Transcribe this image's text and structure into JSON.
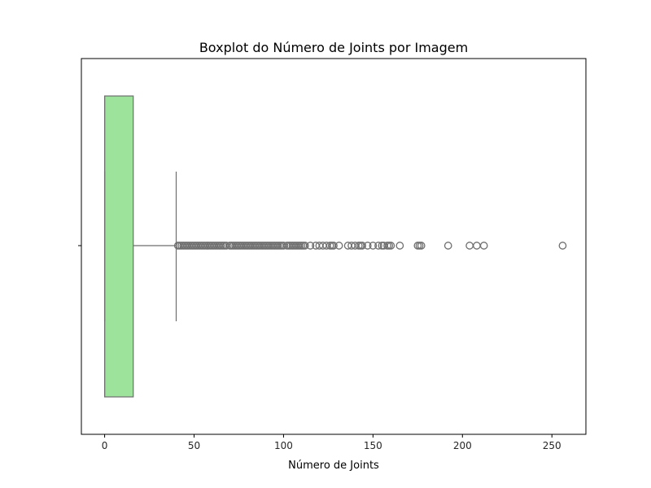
{
  "chart_data": {
    "type": "boxplot",
    "orientation": "horizontal",
    "title": "Boxplot do Número de Joints por Imagem",
    "xlabel": "Número de Joints",
    "ylabel": "",
    "xlim": [
      -13,
      269
    ],
    "xticks": [
      0,
      50,
      100,
      150,
      200,
      250
    ],
    "grid": false,
    "legend": "none",
    "box": {
      "min": 0,
      "q1": 0,
      "median": 0,
      "q3": 16,
      "whisker_low": 0,
      "whisker_high": 40
    },
    "outliers": [
      41,
      42,
      43,
      44,
      45,
      46,
      47,
      48,
      49,
      50,
      51,
      52,
      53,
      54,
      55,
      56,
      57,
      58,
      59,
      60,
      61,
      62,
      63,
      64,
      65,
      66,
      67,
      68,
      70,
      71,
      72,
      73,
      74,
      75,
      76,
      77,
      78,
      79,
      80,
      81,
      82,
      83,
      84,
      85,
      86,
      87,
      88,
      89,
      90,
      91,
      92,
      93,
      94,
      95,
      96,
      97,
      98,
      99,
      100,
      102,
      103,
      104,
      105,
      106,
      107,
      108,
      109,
      110,
      111,
      112,
      115,
      118,
      120,
      122,
      124,
      126,
      127,
      128,
      131,
      136,
      138,
      140,
      142,
      143,
      144,
      147,
      150,
      153,
      155,
      156,
      158,
      159,
      160,
      165,
      175,
      176,
      177,
      192,
      204,
      208,
      212,
      256
    ],
    "colors": {
      "box_fill": "#9de39b",
      "line": "#6e6e6e",
      "outlier_edge": "#6e6e6e",
      "frame": "#000000"
    }
  }
}
